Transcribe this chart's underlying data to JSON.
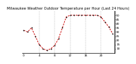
{
  "title": "Milwaukee Weather Outdoor Temperature per Hour (Last 24 Hours)",
  "hours": [
    0,
    1,
    2,
    3,
    4,
    5,
    6,
    7,
    8,
    9,
    10,
    11,
    12,
    13,
    14,
    15,
    16,
    17,
    18,
    19,
    20,
    21,
    22,
    23
  ],
  "temps": [
    32,
    30,
    35,
    25,
    15,
    10,
    8,
    10,
    14,
    22,
    35,
    48,
    50,
    50,
    50,
    50,
    50,
    50,
    50,
    50,
    48,
    42,
    36,
    28
  ],
  "line_color": "#cc0000",
  "marker_color": "#000000",
  "bg_color": "#ffffff",
  "grid_color": "#888888",
  "ylim_min": 5,
  "ylim_max": 55,
  "yticks": [
    10,
    15,
    20,
    25,
    30,
    35,
    40,
    45,
    50
  ],
  "xticks": [
    0,
    4,
    8,
    12,
    16,
    20
  ],
  "xtick_labels": [
    "0",
    "4",
    "8",
    "12",
    "16",
    "20"
  ],
  "vgrid_positions": [
    4,
    8,
    12,
    16,
    20
  ],
  "title_fontsize": 3.8,
  "tick_fontsize": 3.2
}
